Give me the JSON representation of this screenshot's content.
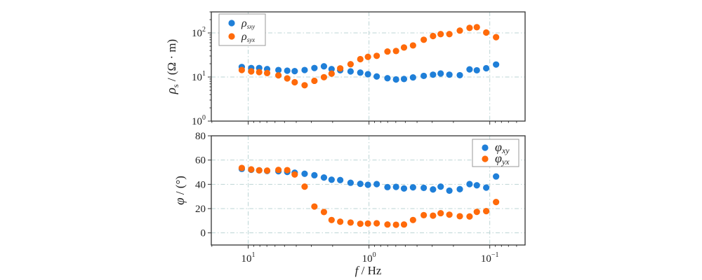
{
  "chart_data": [
    {
      "type": "scatter",
      "panel": "top",
      "ylabel": {
        "symbol": "ρ",
        "subscript": "s",
        "unit": " / (Ω · m)"
      },
      "xlabel": "",
      "xscale": "log",
      "x_reversed": true,
      "xlim": [
        20.2,
        0.051
      ],
      "yscale": "log",
      "ylim": [
        1,
        300
      ],
      "grid": true,
      "legend_placement": "top-left",
      "xticks": [
        {
          "value": 10,
          "base": "10",
          "exp": "1"
        },
        {
          "value": 1,
          "base": "10",
          "exp": "0"
        },
        {
          "value": 0.1,
          "base": "10",
          "exp": "−1"
        }
      ],
      "yticks": [
        {
          "value": 1,
          "base": "10",
          "exp": "0"
        },
        {
          "value": 10,
          "base": "10",
          "exp": "1"
        },
        {
          "value": 100,
          "base": "10",
          "exp": "2"
        }
      ],
      "x": [
        11.3,
        9.44,
        8.11,
        6.97,
        5.62,
        4.75,
        4.12,
        3.41,
        2.83,
        2.36,
        2.04,
        1.73,
        1.42,
        1.18,
        1.02,
        0.863,
        0.703,
        0.597,
        0.513,
        0.432,
        0.352,
        0.295,
        0.255,
        0.216,
        0.177,
        0.147,
        0.128,
        0.107,
        0.0887
      ],
      "series": [
        {
          "name": {
            "symbol": "ρ",
            "subscript": "sxy"
          },
          "color": "#1f7fd8",
          "values": [
            16.9,
            16.0,
            16.0,
            15.1,
            14.4,
            13.9,
            13.6,
            14.4,
            16.0,
            17.5,
            15.1,
            14.2,
            13.4,
            12.6,
            11.6,
            10.3,
            9.4,
            8.8,
            9.0,
            9.8,
            10.6,
            11.3,
            12.0,
            11.3,
            11.0,
            14.9,
            14.2,
            15.8,
            19.2
          ]
        },
        {
          "name": {
            "symbol": "ρ",
            "subscript": "syx"
          },
          "color": "#ff6a0a",
          "values": [
            14.4,
            13.4,
            12.9,
            12.3,
            10.9,
            9.3,
            7.6,
            6.5,
            8.2,
            9.9,
            11.9,
            15.7,
            19.5,
            25.4,
            28.6,
            30.2,
            37.9,
            38.9,
            46.7,
            52,
            70,
            85,
            94,
            94,
            113,
            130,
            135,
            102,
            80
          ]
        }
      ]
    },
    {
      "type": "scatter",
      "panel": "bottom",
      "ylabel": {
        "symbol": "φ",
        "subscript": "",
        "unit": " / (°)"
      },
      "xlabel": {
        "symbol": "f",
        "unit": " / Hz"
      },
      "xscale": "log",
      "x_reversed": true,
      "xlim": [
        20.2,
        0.051
      ],
      "yscale": "linear",
      "ylim": [
        -10,
        80
      ],
      "grid": true,
      "legend_placement": "top-right",
      "xticks": [
        {
          "value": 10,
          "base": "10",
          "exp": "1"
        },
        {
          "value": 1,
          "base": "10",
          "exp": "0"
        },
        {
          "value": 0.1,
          "base": "10",
          "exp": "−1"
        }
      ],
      "yticks": [
        {
          "value": 0,
          "base": "0",
          "exp": ""
        },
        {
          "value": 20,
          "base": "20",
          "exp": ""
        },
        {
          "value": 40,
          "base": "40",
          "exp": ""
        },
        {
          "value": 60,
          "base": "60",
          "exp": ""
        },
        {
          "value": 80,
          "base": "80",
          "exp": ""
        }
      ],
      "x": [
        11.3,
        9.44,
        8.11,
        6.97,
        5.62,
        4.75,
        4.12,
        3.41,
        2.83,
        2.36,
        2.04,
        1.73,
        1.42,
        1.18,
        1.02,
        0.863,
        0.703,
        0.597,
        0.513,
        0.432,
        0.352,
        0.295,
        0.255,
        0.216,
        0.177,
        0.147,
        0.128,
        0.107,
        0.0887
      ],
      "series": [
        {
          "name": {
            "symbol": "φ",
            "subscript": "xy"
          },
          "color": "#1f7fd8",
          "values": [
            52.7,
            52.0,
            51.5,
            51.0,
            50.8,
            50.2,
            49.6,
            48.7,
            47.5,
            45.6,
            43.8,
            43.5,
            41.3,
            40.4,
            39.6,
            40.2,
            37.7,
            37.9,
            36.6,
            37.5,
            37.1,
            35.8,
            38.1,
            34.8,
            36.0,
            40.2,
            39.2,
            37.3,
            46.5
          ]
        },
        {
          "name": {
            "symbol": "φ",
            "subscript": "yx"
          },
          "color": "#ff6a0a",
          "values": [
            53.5,
            52.3,
            51.5,
            51.3,
            51.9,
            51.7,
            48.1,
            38.1,
            21.7,
            17.2,
            10.6,
            9.2,
            8.5,
            7.5,
            7.7,
            7.9,
            6.9,
            6.7,
            6.9,
            10.6,
            14.6,
            14.2,
            16.2,
            15.0,
            13.7,
            13.5,
            17.3,
            17.9,
            25.4
          ]
        }
      ]
    }
  ]
}
